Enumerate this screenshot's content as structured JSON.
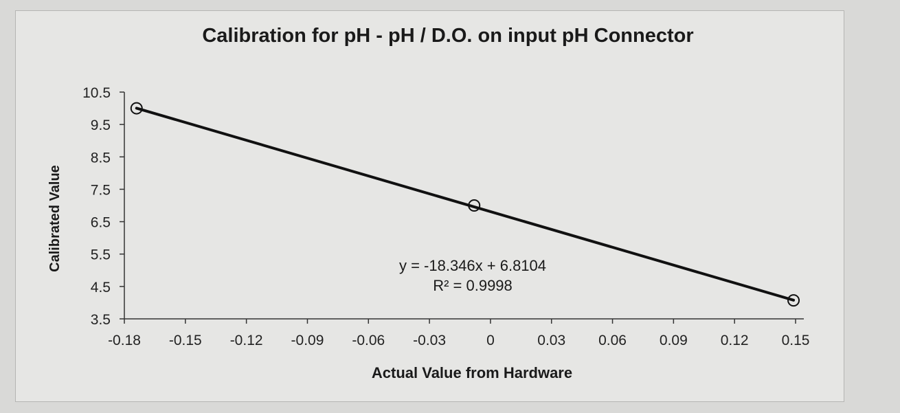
{
  "chart_data": {
    "type": "scatter",
    "title": "Calibration for pH - pH / D.O. on input pH Connector",
    "xlabel": "Actual Value from Hardware",
    "ylabel": "Calibrated Value",
    "xlim": [
      -0.18,
      0.15
    ],
    "ylim": [
      3.5,
      10.5
    ],
    "x_ticks": [
      "-0.18",
      "-0.15",
      "-0.12",
      "-0.09",
      "-0.06",
      "-0.03",
      "0",
      "0.03",
      "0.06",
      "0.09",
      "0.12",
      "0.15"
    ],
    "x_tick_values": [
      -0.18,
      -0.15,
      -0.12,
      -0.09,
      -0.06,
      -0.03,
      0,
      0.03,
      0.06,
      0.09,
      0.12,
      0.15
    ],
    "y_ticks": [
      "10.5",
      "9.5",
      "8.5",
      "7.5",
      "6.5",
      "5.5",
      "4.5",
      "3.5"
    ],
    "y_tick_values": [
      10.5,
      9.5,
      8.5,
      7.5,
      6.5,
      5.5,
      4.5,
      3.5
    ],
    "series": [
      {
        "points": [
          {
            "x": -0.174,
            "y": 10.0
          },
          {
            "x": -0.008,
            "y": 7.0
          },
          {
            "x": 0.149,
            "y": 4.07
          }
        ],
        "marker": "open-circle",
        "color": "#111111"
      }
    ],
    "trendline": {
      "slope": -18.346,
      "intercept": 6.8104,
      "x_range": [
        -0.174,
        0.149
      ],
      "equation": "y = -18.346x + 6.8104",
      "r_squared": "R² = 0.9998"
    },
    "grid": false,
    "legend": "none"
  }
}
